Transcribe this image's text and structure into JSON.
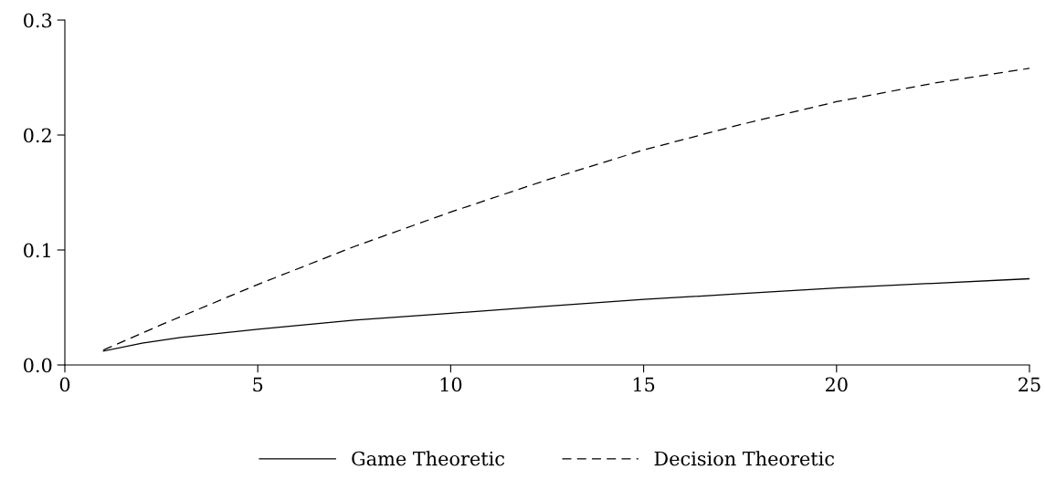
{
  "chart_data": {
    "type": "line",
    "xlim": [
      0,
      25
    ],
    "xticks": [
      0,
      5,
      10,
      15,
      20,
      25
    ],
    "ylim": [
      0,
      0.3
    ],
    "yticks": [
      {
        "value": 0,
        "label": "0.0"
      },
      0.1,
      0.2,
      0.3
    ],
    "grid": false,
    "legend": "bottom",
    "marker": "none",
    "series": [
      {
        "name": "Game Theoretic",
        "color": "#000000",
        "line_style": "solid",
        "x": [
          1,
          2,
          3,
          5,
          7.5,
          10,
          12.5,
          15,
          17.5,
          20,
          22.5,
          25
        ],
        "values": [
          0.012,
          0.019,
          0.024,
          0.031,
          0.039,
          0.045,
          0.051,
          0.057,
          0.062,
          0.067,
          0.071,
          0.075
        ]
      },
      {
        "name": "Decision Theoretic",
        "color": "#000000",
        "line_style": "dashed",
        "x": [
          1,
          2.5,
          5,
          7.5,
          10,
          12.5,
          15,
          17.5,
          20,
          22.5,
          25
        ],
        "values": [
          0.013,
          0.035,
          0.07,
          0.103,
          0.133,
          0.161,
          0.187,
          0.209,
          0.229,
          0.245,
          0.258
        ]
      }
    ]
  }
}
